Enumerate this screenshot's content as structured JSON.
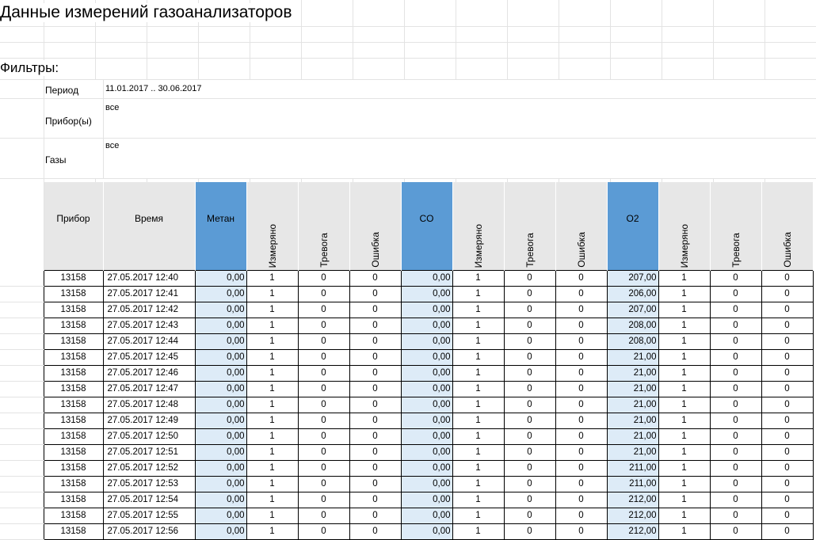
{
  "sheet": {
    "title": "Данные измерений газоанализаторов",
    "filters_label": "Фильтры:",
    "filters": [
      {
        "label": "Период",
        "value": "11.01.2017 .. 30.06.2017"
      },
      {
        "label": "Прибор(ы)",
        "value": "все"
      },
      {
        "label": "Газы",
        "value": "все"
      }
    ]
  },
  "table": {
    "columns": [
      "Прибор",
      "Время",
      "Метан",
      "Измерянo",
      "Тревога",
      "Ошибка",
      "CO",
      "Измерянo",
      "Тревога",
      "Ошибка",
      "O2",
      "Измерянo",
      "Тревога",
      "Ошибка"
    ],
    "rows": [
      [
        "13158",
        "27.05.2017 12:40",
        "0,00",
        "1",
        "0",
        "0",
        "0,00",
        "1",
        "0",
        "0",
        "207,00",
        "1",
        "0",
        "0"
      ],
      [
        "13158",
        "27.05.2017 12:41",
        "0,00",
        "1",
        "0",
        "0",
        "0,00",
        "1",
        "0",
        "0",
        "206,00",
        "1",
        "0",
        "0"
      ],
      [
        "13158",
        "27.05.2017 12:42",
        "0,00",
        "1",
        "0",
        "0",
        "0,00",
        "1",
        "0",
        "0",
        "207,00",
        "1",
        "0",
        "0"
      ],
      [
        "13158",
        "27.05.2017 12:43",
        "0,00",
        "1",
        "0",
        "0",
        "0,00",
        "1",
        "0",
        "0",
        "208,00",
        "1",
        "0",
        "0"
      ],
      [
        "13158",
        "27.05.2017 12:44",
        "0,00",
        "1",
        "0",
        "0",
        "0,00",
        "1",
        "0",
        "0",
        "208,00",
        "1",
        "0",
        "0"
      ],
      [
        "13158",
        "27.05.2017 12:45",
        "0,00",
        "1",
        "0",
        "0",
        "0,00",
        "1",
        "0",
        "0",
        "21,00",
        "1",
        "0",
        "0"
      ],
      [
        "13158",
        "27.05.2017 12:46",
        "0,00",
        "1",
        "0",
        "0",
        "0,00",
        "1",
        "0",
        "0",
        "21,00",
        "1",
        "0",
        "0"
      ],
      [
        "13158",
        "27.05.2017 12:47",
        "0,00",
        "1",
        "0",
        "0",
        "0,00",
        "1",
        "0",
        "0",
        "21,00",
        "1",
        "0",
        "0"
      ],
      [
        "13158",
        "27.05.2017 12:48",
        "0,00",
        "1",
        "0",
        "0",
        "0,00",
        "1",
        "0",
        "0",
        "21,00",
        "1",
        "0",
        "0"
      ],
      [
        "13158",
        "27.05.2017 12:49",
        "0,00",
        "1",
        "0",
        "0",
        "0,00",
        "1",
        "0",
        "0",
        "21,00",
        "1",
        "0",
        "0"
      ],
      [
        "13158",
        "27.05.2017 12:50",
        "0,00",
        "1",
        "0",
        "0",
        "0,00",
        "1",
        "0",
        "0",
        "21,00",
        "1",
        "0",
        "0"
      ],
      [
        "13158",
        "27.05.2017 12:51",
        "0,00",
        "1",
        "0",
        "0",
        "0,00",
        "1",
        "0",
        "0",
        "21,00",
        "1",
        "0",
        "0"
      ],
      [
        "13158",
        "27.05.2017 12:52",
        "0,00",
        "1",
        "0",
        "0",
        "0,00",
        "1",
        "0",
        "0",
        "211,00",
        "1",
        "0",
        "0"
      ],
      [
        "13158",
        "27.05.2017 12:53",
        "0,00",
        "1",
        "0",
        "0",
        "0,00",
        "1",
        "0",
        "0",
        "211,00",
        "1",
        "0",
        "0"
      ],
      [
        "13158",
        "27.05.2017 12:54",
        "0,00",
        "1",
        "0",
        "0",
        "0,00",
        "1",
        "0",
        "0",
        "212,00",
        "1",
        "0",
        "0"
      ],
      [
        "13158",
        "27.05.2017 12:55",
        "0,00",
        "1",
        "0",
        "0",
        "0,00",
        "1",
        "0",
        "0",
        "212,00",
        "1",
        "0",
        "0"
      ],
      [
        "13158",
        "27.05.2017 12:56",
        "0,00",
        "1",
        "0",
        "0",
        "0,00",
        "1",
        "0",
        "0",
        "212,00",
        "1",
        "0",
        "0"
      ]
    ]
  },
  "colors": {
    "gas_header": "#5b9bd5",
    "gas_value_cell": "#ddebf7",
    "header_bg": "#e7e7e7",
    "gridline": "#e3e3e3"
  }
}
